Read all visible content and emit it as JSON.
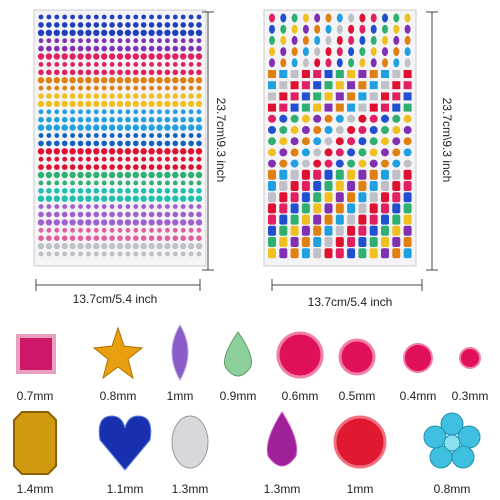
{
  "sheets": [
    {
      "height_label": "23.7cm\\9.3 inch",
      "width_label": "13.7cm/5.4 inch"
    },
    {
      "height_label": "23.7cm\\9.3 inch",
      "width_label": "13.7cm/5.4 inch"
    }
  ],
  "gems": {
    "row1": [
      "0.7mm",
      "0.8mm",
      "1mm",
      "0.9mm",
      "0.6mm",
      "0.5mm",
      "0.4mm",
      "0.3mm"
    ],
    "row2": [
      "1.4mm",
      "1.1mm",
      "1.3mm",
      "1.3mm",
      "1mm",
      "0.8mm"
    ]
  }
}
